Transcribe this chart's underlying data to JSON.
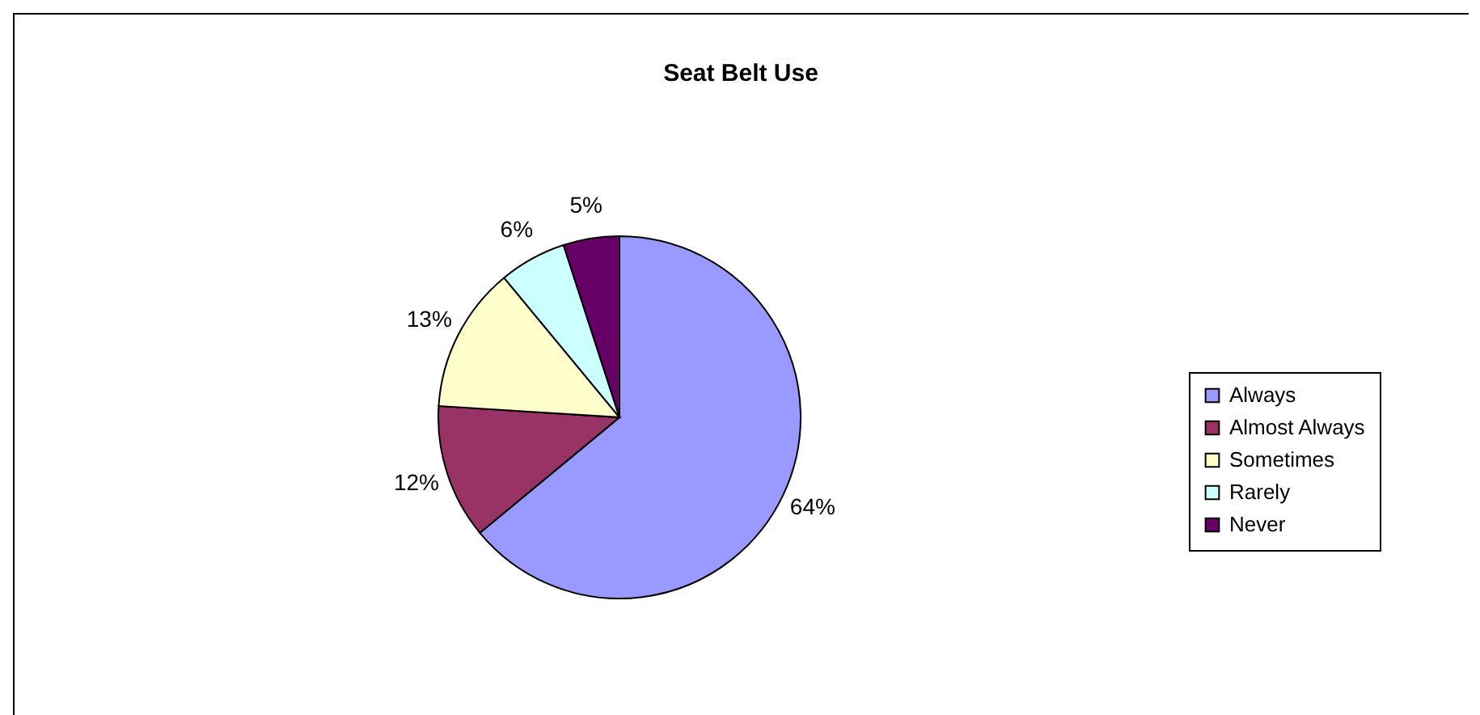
{
  "chart_data": {
    "type": "pie",
    "title": "Seat Belt Use",
    "categories": [
      "Always",
      "Almost Always",
      "Sometimes",
      "Rarely",
      "Never"
    ],
    "values": [
      64,
      12,
      13,
      6,
      5
    ],
    "colors": [
      "#9999ff",
      "#993366",
      "#ffffcc",
      "#ccffff",
      "#660066"
    ],
    "value_labels": [
      "64%",
      "12%",
      "13%",
      "6%",
      "5%"
    ],
    "legend": "right"
  }
}
